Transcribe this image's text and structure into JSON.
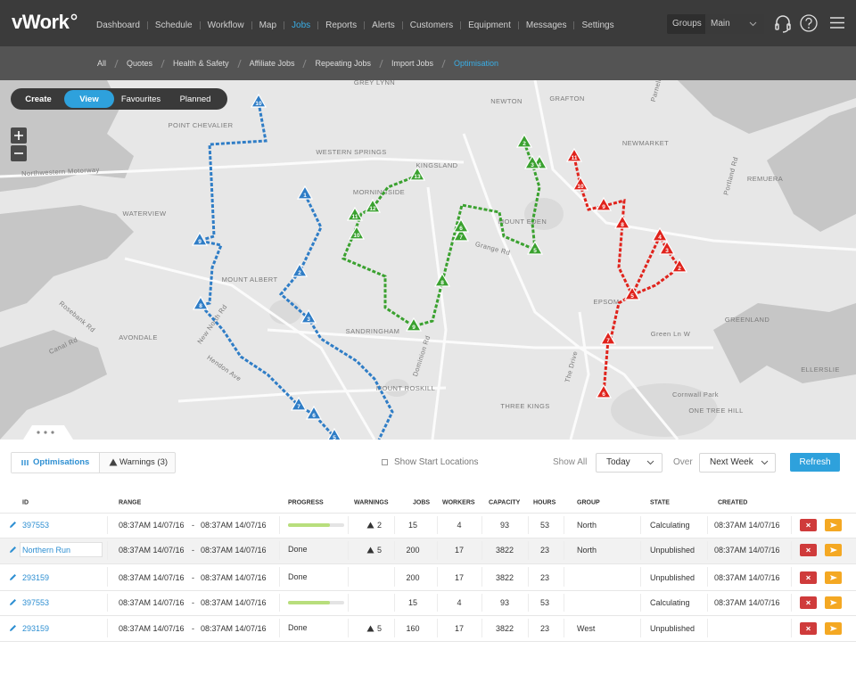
{
  "header": {
    "logo": "vWork",
    "nav": [
      "Dashboard",
      "Schedule",
      "Workflow",
      "Map",
      "Jobs",
      "Reports",
      "Alerts",
      "Customers",
      "Equipment",
      "Messages",
      "Settings"
    ],
    "active_nav": 4,
    "groups_label": "Groups",
    "group_select": "Main"
  },
  "subnav": {
    "items": [
      "All",
      "Quotes",
      "Health & Safety",
      "Affiliate Jobs",
      "Repeating Jobs",
      "Import Jobs",
      "Optimisation"
    ],
    "active": 6
  },
  "map": {
    "mode_tabs": [
      "Create",
      "View",
      "Favourites",
      "Planned"
    ],
    "active_mode": 1,
    "labels": [
      "GREY LYNN",
      "NEWTON",
      "GRAFTON",
      "Parnell",
      "POINT CHEVALIER",
      "WESTERN SPRINGS",
      "KINGSLAND",
      "NEWMARKET",
      "REMUERA",
      "Northwestern Motorway",
      "MORNINGSIDE",
      "WATERVIEW",
      "MOUNT EDEN",
      "Grange Rd",
      "MOUNT ALBERT",
      "New North Rd",
      "Rosebank Rd",
      "AVONDALE",
      "SANDRINGHAM",
      "Dominion Rd",
      "EPSOM",
      "GREENLAND",
      "Green Ln W",
      "Canal Rd",
      "Hendon Ave",
      "The Drive",
      "ELLERSLIE",
      "Cornwall Park",
      "ONE TREE HILL",
      "THREE KINGS",
      "MOUNT ROSKILL",
      "Portland Rd"
    ],
    "routes": [
      {
        "color": "#2f7dc6",
        "stops": [
          "10",
          "9",
          "8",
          "7",
          "6",
          "5"
        ]
      },
      {
        "color": "#2f7dc6",
        "stops": [
          "1",
          "2",
          "3"
        ]
      },
      {
        "color": "#3aa12f",
        "stops": [
          "13",
          "12",
          "11",
          "10",
          "9",
          "8",
          "7",
          "6",
          "5",
          "4",
          "3",
          "2"
        ]
      },
      {
        "color": "#e0231c",
        "stops": [
          "11",
          "10",
          "9",
          "8",
          "7",
          "6",
          "5",
          "4",
          "3",
          "2"
        ]
      }
    ]
  },
  "toolbar": {
    "tabs": [
      "Optimisations",
      "Warnings (3)"
    ],
    "active_tab": 0,
    "show_start_locations": "Show Start Locations",
    "show_all": "Show All",
    "period": "Today",
    "over": "Over",
    "range": "Next Week",
    "refresh": "Refresh"
  },
  "table": {
    "columns": [
      "ID",
      "RANGE",
      "PROGRESS",
      "WARNINGS",
      "JOBS",
      "WORKERS",
      "CAPACITY",
      "HOURS",
      "GROUP",
      "STATE",
      "CREATED"
    ],
    "range_separator": "-",
    "rows": [
      {
        "id": "397553",
        "editing": false,
        "range_start": "08:37AM 14/07/16",
        "range_end": "08:37AM 14/07/16",
        "progress": 75,
        "warnings": 2,
        "jobs": 15,
        "workers": 4,
        "capacity": 93,
        "hours": 53,
        "group": "North",
        "state": "Calculating",
        "created": "08:37AM 14/07/16"
      },
      {
        "id": "Northern Run",
        "editing": true,
        "range_start": "08:37AM 14/07/16",
        "range_end": "08:37AM 14/07/16",
        "progress": "Done",
        "warnings": 5,
        "jobs": 200,
        "workers": 17,
        "capacity": 3822,
        "hours": 23,
        "group": "North",
        "state": "Unpublished",
        "created": "08:37AM 14/07/16"
      },
      {
        "id": "293159",
        "editing": false,
        "range_start": "08:37AM 14/07/16",
        "range_end": "08:37AM 14/07/16",
        "progress": "Done",
        "warnings": null,
        "jobs": 200,
        "workers": 17,
        "capacity": 3822,
        "hours": 23,
        "group": null,
        "state": "Unpublished",
        "created": "08:37AM 14/07/16"
      },
      {
        "id": "397553",
        "editing": false,
        "range_start": "08:37AM 14/07/16",
        "range_end": "08:37AM 14/07/16",
        "progress": 75,
        "warnings": null,
        "jobs": 15,
        "workers": 4,
        "capacity": 93,
        "hours": 53,
        "group": null,
        "state": "Calculating",
        "created": "08:37AM 14/07/16"
      },
      {
        "id": "293159",
        "editing": false,
        "range_start": "08:37AM 14/07/16",
        "range_end": "08:37AM 14/07/16",
        "progress": "Done",
        "warnings": 5,
        "jobs": 160,
        "workers": 17,
        "capacity": 3822,
        "hours": 23,
        "group": "West",
        "state": "Unpublished",
        "created": null
      }
    ]
  }
}
